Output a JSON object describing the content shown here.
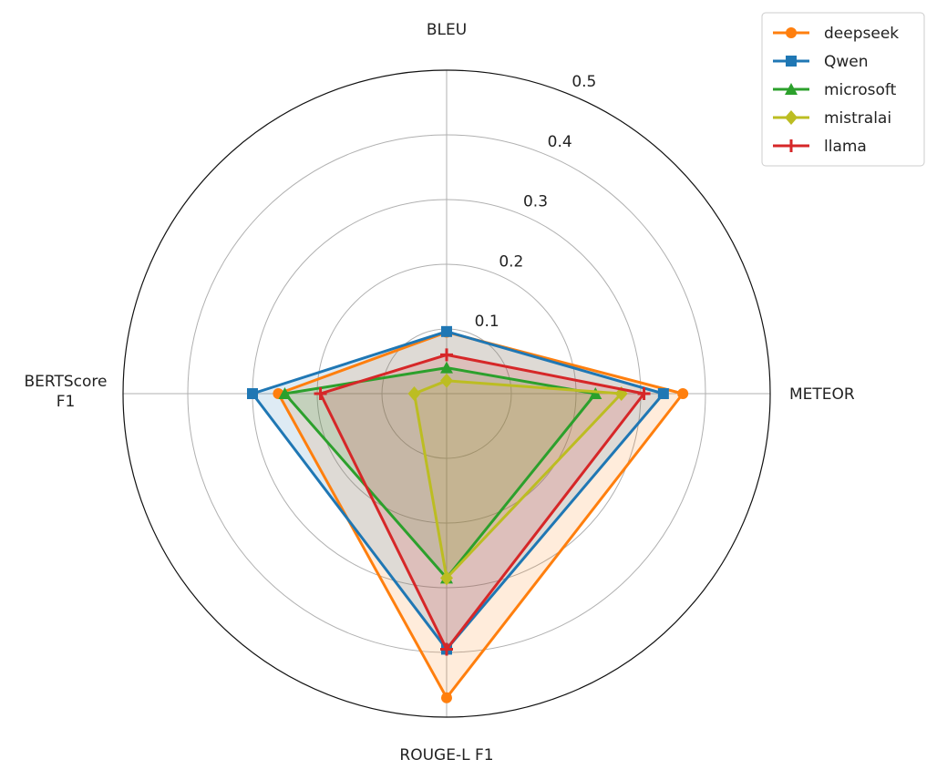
{
  "chart_data": {
    "type": "radar",
    "axes": [
      {
        "label_lines": [
          "BLEU"
        ]
      },
      {
        "label_lines": [
          "METEOR"
        ]
      },
      {
        "label_lines": [
          "ROUGE-L F1"
        ]
      },
      {
        "label_lines": [
          "BERTScore",
          "F1"
        ]
      }
    ],
    "rlim": [
      0,
      0.5
    ],
    "r_ticks": [
      0.1,
      0.2,
      0.3,
      0.4,
      0.5
    ],
    "r_tick_labels": [
      "0.1",
      "0.2",
      "0.3",
      "0.4",
      "0.5"
    ],
    "grid": true,
    "legend_position": "top-right",
    "series": [
      {
        "name": "deepseek",
        "color": "#ff7f0e",
        "marker": "circle",
        "values": [
          0.095,
          0.365,
          0.47,
          0.26
        ]
      },
      {
        "name": "Qwen",
        "color": "#1f77b4",
        "marker": "square",
        "values": [
          0.096,
          0.335,
          0.395,
          0.3
        ]
      },
      {
        "name": "microsoft",
        "color": "#2ca02c",
        "marker": "triangle",
        "values": [
          0.04,
          0.23,
          0.285,
          0.25
        ]
      },
      {
        "name": "mistralai",
        "color": "#bcbd22",
        "marker": "diamond",
        "values": [
          0.02,
          0.27,
          0.285,
          0.05
        ]
      },
      {
        "name": "llama",
        "color": "#d62728",
        "marker": "plus",
        "values": [
          0.06,
          0.305,
          0.395,
          0.195
        ]
      }
    ]
  }
}
